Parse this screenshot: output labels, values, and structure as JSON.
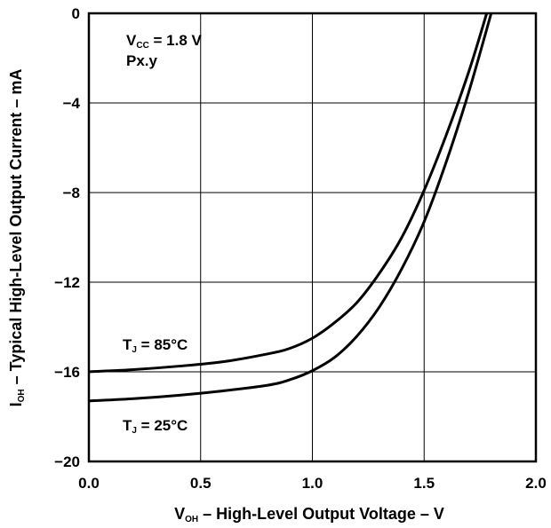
{
  "chart_data": {
    "type": "line",
    "xlabel": {
      "main": "V",
      "sub": "OH",
      "rest": " – High-Level Output Voltage – V"
    },
    "ylabel": {
      "main": "I",
      "sub": "OH",
      "rest": " – Typical High-Level Output Current – mA"
    },
    "xlim": [
      0,
      2.0
    ],
    "ylim": [
      -20,
      0
    ],
    "xticks": [
      "0.0",
      "0.5",
      "1.0",
      "1.5",
      "2.0"
    ],
    "yticks": [
      "0",
      "−4",
      "−8",
      "−12",
      "−16",
      "−20"
    ],
    "grid": true,
    "conditions": {
      "vcc_main": "V",
      "vcc_sub": "CC",
      "vcc_rest": " = 1.8 V",
      "pkg": "Px.y"
    },
    "series": [
      {
        "label_main": "T",
        "label_sub": "J",
        "label_rest": " = 85°C",
        "x": [
          0.0,
          0.2,
          0.4,
          0.6,
          0.8,
          0.9,
          1.0,
          1.1,
          1.2,
          1.3,
          1.4,
          1.5,
          1.6,
          1.7,
          1.78
        ],
        "y": [
          -16.0,
          -15.9,
          -15.75,
          -15.55,
          -15.2,
          -14.95,
          -14.5,
          -13.8,
          -12.9,
          -11.6,
          -10.0,
          -7.9,
          -5.4,
          -2.6,
          0.0
        ]
      },
      {
        "label_main": "T",
        "label_sub": "J",
        "label_rest": " = 25°C",
        "x": [
          0.0,
          0.2,
          0.4,
          0.6,
          0.8,
          0.9,
          1.0,
          1.1,
          1.2,
          1.3,
          1.4,
          1.5,
          1.6,
          1.7,
          1.8
        ],
        "y": [
          -17.3,
          -17.2,
          -17.05,
          -16.85,
          -16.6,
          -16.35,
          -15.95,
          -15.35,
          -14.4,
          -13.1,
          -11.4,
          -9.3,
          -6.6,
          -3.5,
          0.0
        ]
      }
    ]
  }
}
